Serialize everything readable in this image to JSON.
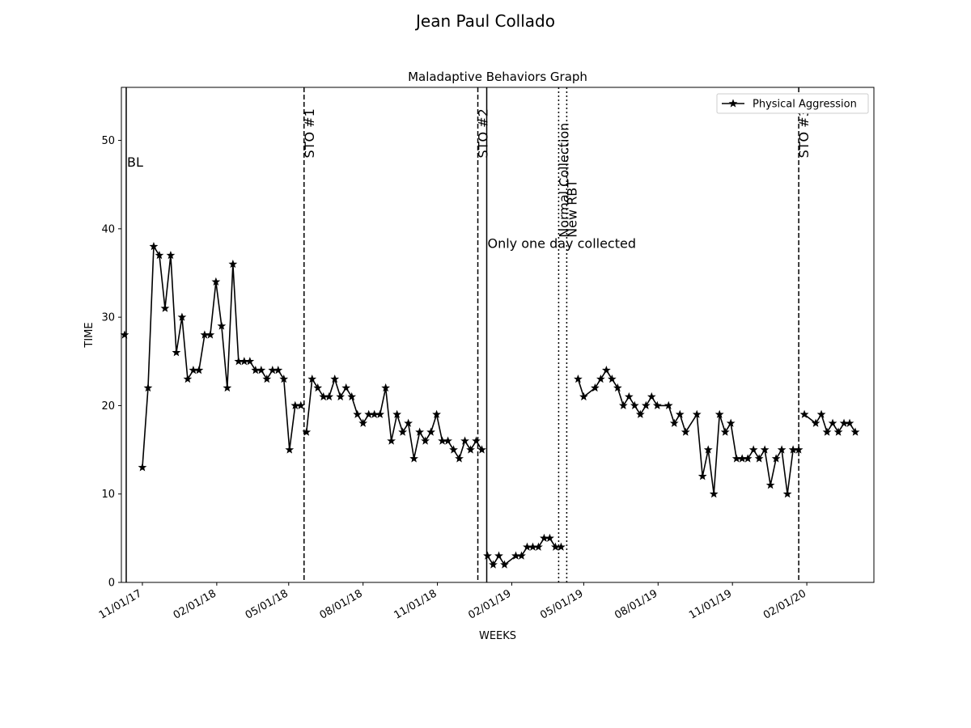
{
  "figure": {
    "suptitle": "Jean Paul  Collado"
  },
  "chart_data": {
    "type": "line",
    "title": "Maladaptive Behaviors Graph",
    "xlabel": "WEEKS",
    "ylabel": "TIME",
    "ylim": [
      0,
      56
    ],
    "xlim": [
      "2017-10-06",
      "2020-04-24"
    ],
    "y_ticks": [
      0,
      10,
      20,
      30,
      40,
      50
    ],
    "x_ticks": [
      {
        "date": "2017-11-01",
        "label": "11/01/17"
      },
      {
        "date": "2018-02-01",
        "label": "02/01/18"
      },
      {
        "date": "2018-05-01",
        "label": "05/01/18"
      },
      {
        "date": "2018-08-01",
        "label": "08/01/18"
      },
      {
        "date": "2018-11-01",
        "label": "11/01/18"
      },
      {
        "date": "2019-02-01",
        "label": "02/01/19"
      },
      {
        "date": "2019-05-01",
        "label": "05/01/19"
      },
      {
        "date": "2019-08-01",
        "label": "08/01/19"
      },
      {
        "date": "2019-11-01",
        "label": "11/01/19"
      },
      {
        "date": "2020-02-01",
        "label": "02/01/20"
      }
    ],
    "grid": false,
    "legend": {
      "placement": "upper-right"
    },
    "colors": {
      "line": "#000000"
    },
    "series": [
      {
        "name": "Physical Aggression",
        "marker": "star",
        "segments": [
          [
            [
              "2017-10-10",
              28
            ]
          ],
          [
            [
              "2017-11-01",
              13
            ],
            [
              "2017-11-08",
              22
            ],
            [
              "2017-11-15",
              38
            ],
            [
              "2017-11-22",
              37
            ],
            [
              "2017-11-29",
              31
            ],
            [
              "2017-12-06",
              37
            ],
            [
              "2017-12-13",
              26
            ],
            [
              "2017-12-20",
              30
            ],
            [
              "2017-12-27",
              23
            ],
            [
              "2018-01-03",
              24
            ],
            [
              "2018-01-10",
              24
            ],
            [
              "2018-01-17",
              28
            ],
            [
              "2018-01-24",
              28
            ],
            [
              "2018-01-31",
              34
            ],
            [
              "2018-02-07",
              29
            ],
            [
              "2018-02-14",
              22
            ],
            [
              "2018-02-21",
              36
            ],
            [
              "2018-02-28",
              25
            ],
            [
              "2018-03-07",
              25
            ],
            [
              "2018-03-14",
              25
            ],
            [
              "2018-03-21",
              24
            ],
            [
              "2018-03-28",
              24
            ],
            [
              "2018-04-04",
              23
            ],
            [
              "2018-04-11",
              24
            ],
            [
              "2018-04-18",
              24
            ],
            [
              "2018-04-25",
              23
            ],
            [
              "2018-05-02",
              15
            ],
            [
              "2018-05-09",
              20
            ],
            [
              "2018-05-16",
              20
            ]
          ],
          [
            [
              "2018-05-23",
              17
            ],
            [
              "2018-05-30",
              23
            ],
            [
              "2018-06-06",
              22
            ],
            [
              "2018-06-13",
              21
            ],
            [
              "2018-06-20",
              21
            ],
            [
              "2018-06-27",
              23
            ],
            [
              "2018-07-04",
              21
            ],
            [
              "2018-07-11",
              22
            ],
            [
              "2018-07-18",
              21
            ],
            [
              "2018-07-25",
              19
            ],
            [
              "2018-08-01",
              18
            ],
            [
              "2018-08-08",
              19
            ],
            [
              "2018-08-15",
              19
            ],
            [
              "2018-08-22",
              19
            ],
            [
              "2018-08-29",
              22
            ],
            [
              "2018-09-05",
              16
            ],
            [
              "2018-09-12",
              19
            ],
            [
              "2018-09-19",
              17
            ],
            [
              "2018-09-26",
              18
            ],
            [
              "2018-10-03",
              14
            ],
            [
              "2018-10-10",
              17
            ],
            [
              "2018-10-17",
              16
            ],
            [
              "2018-10-24",
              17
            ],
            [
              "2018-10-31",
              19
            ],
            [
              "2018-11-07",
              16
            ],
            [
              "2018-11-14",
              16
            ],
            [
              "2018-11-21",
              15
            ],
            [
              "2018-11-28",
              14
            ],
            [
              "2018-12-05",
              16
            ],
            [
              "2018-12-12",
              15
            ],
            [
              "2018-12-19",
              16
            ],
            [
              "2018-12-26",
              15
            ]
          ],
          [
            [
              "2019-01-02",
              3
            ],
            [
              "2019-01-09",
              2
            ],
            [
              "2019-01-16",
              3
            ],
            [
              "2019-01-23",
              2
            ],
            [
              "2019-02-06",
              3
            ],
            [
              "2019-02-13",
              3
            ],
            [
              "2019-02-20",
              4
            ],
            [
              "2019-02-27",
              4
            ],
            [
              "2019-03-06",
              4
            ],
            [
              "2019-03-13",
              5
            ],
            [
              "2019-03-20",
              5
            ],
            [
              "2019-03-27",
              4
            ],
            [
              "2019-04-03",
              4
            ]
          ],
          [
            [
              "2019-04-24",
              23
            ],
            [
              "2019-05-01",
              21
            ],
            [
              "2019-05-15",
              22
            ],
            [
              "2019-05-22",
              23
            ],
            [
              "2019-05-29",
              24
            ],
            [
              "2019-06-05",
              23
            ],
            [
              "2019-06-12",
              22
            ],
            [
              "2019-06-19",
              20
            ],
            [
              "2019-06-26",
              21
            ],
            [
              "2019-07-03",
              20
            ],
            [
              "2019-07-10",
              19
            ],
            [
              "2019-07-17",
              20
            ],
            [
              "2019-07-24",
              21
            ],
            [
              "2019-07-31",
              20
            ],
            [
              "2019-08-14",
              20
            ],
            [
              "2019-08-21",
              18
            ],
            [
              "2019-08-28",
              19
            ],
            [
              "2019-09-04",
              17
            ],
            [
              "2019-09-18",
              19
            ],
            [
              "2019-09-25",
              12
            ],
            [
              "2019-10-02",
              15
            ],
            [
              "2019-10-09",
              10
            ],
            [
              "2019-10-16",
              19
            ],
            [
              "2019-10-23",
              17
            ],
            [
              "2019-10-30",
              18
            ],
            [
              "2019-11-06",
              14
            ],
            [
              "2019-11-13",
              14
            ],
            [
              "2019-11-20",
              14
            ],
            [
              "2019-11-27",
              15
            ],
            [
              "2019-12-04",
              14
            ],
            [
              "2019-12-11",
              15
            ],
            [
              "2019-12-18",
              11
            ],
            [
              "2019-12-25",
              14
            ],
            [
              "2020-01-01",
              15
            ],
            [
              "2020-01-08",
              10
            ],
            [
              "2020-01-15",
              15
            ],
            [
              "2020-01-22",
              15
            ]
          ],
          [
            [
              "2020-01-29",
              19
            ],
            [
              "2020-02-12",
              18
            ],
            [
              "2020-02-19",
              19
            ],
            [
              "2020-02-26",
              17
            ],
            [
              "2020-03-04",
              18
            ],
            [
              "2020-03-11",
              17
            ],
            [
              "2020-03-18",
              18
            ],
            [
              "2020-03-25",
              18
            ],
            [
              "2020-04-01",
              17
            ]
          ]
        ]
      }
    ],
    "phase_lines": [
      {
        "date": "2017-10-12",
        "style": "solid",
        "label": "BL",
        "label_orientation": "horizontal",
        "label_y": 47.5
      },
      {
        "date": "2018-05-20",
        "style": "dashed",
        "label": "STO #1",
        "label_orientation": "vertical",
        "label_y": 48
      },
      {
        "date": "2018-12-21",
        "style": "dashed",
        "label": "STO #2",
        "label_orientation": "vertical",
        "label_y": 48
      },
      {
        "date": "2019-01-01",
        "style": "solid",
        "label": "Only one day collected",
        "label_orientation": "horizontal",
        "label_y": 38.3
      },
      {
        "date": "2019-03-31",
        "style": "dotted",
        "label": "Normal Collection",
        "label_orientation": "vertical",
        "label_y": 39
      },
      {
        "date": "2019-04-10",
        "style": "dotted",
        "label": "New RBT",
        "label_orientation": "vertical",
        "label_y": 39
      },
      {
        "date": "2020-01-22",
        "style": "dashed",
        "label": "STO #3",
        "label_orientation": "vertical",
        "label_y": 48
      }
    ]
  }
}
